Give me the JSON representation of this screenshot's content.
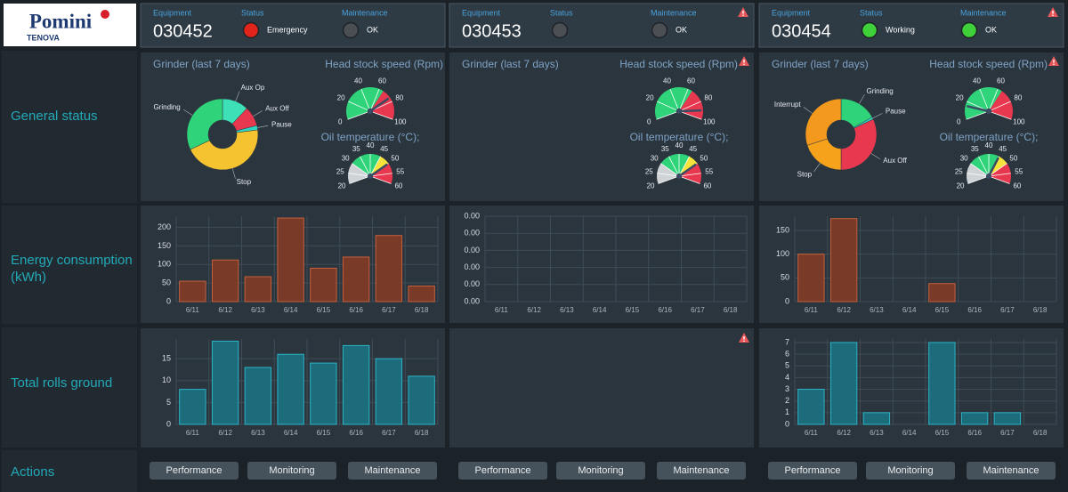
{
  "logo": {
    "brand": "Pomini",
    "sub": "TENOVA"
  },
  "row_labels": [
    "General status",
    "Energy consumption (kWh)",
    "Total rolls ground",
    "Actions"
  ],
  "columns": [
    {
      "header": {
        "equipment_label": "Equipment",
        "equipment": "030452",
        "status_label": "Status",
        "status": "Emergency",
        "status_color": "#e0241c",
        "maintenance_label": "Maintenance",
        "maintenance": "OK",
        "maintenance_color": "#4b4e52",
        "warning": false
      },
      "general": {
        "warning": false,
        "grinder_title": "Grinder (last 7 days)",
        "pie": {
          "type": "pie",
          "labels": [
            "Aux Op",
            "Aux Off",
            "Pause",
            "Stop",
            "Grinding"
          ],
          "values": [
            12,
            9,
            2,
            45,
            32
          ],
          "colors": [
            "#3ee0b8",
            "#e8384f",
            "#2fd6c4",
            "#f5c230",
            "#2fd47a"
          ]
        },
        "speed": {
          "type": "gauge",
          "title": "Head stock speed (Rpm)",
          "value": 75,
          "lim": [
            0,
            100
          ],
          "ticks": [
            0,
            20,
            40,
            60,
            80,
            100
          ],
          "bands": [
            {
              "from": 0,
              "to": 65,
              "color": "#2fd47a"
            },
            {
              "from": 65,
              "to": 100,
              "color": "#e8384f"
            }
          ]
        },
        "oil": {
          "type": "gauge",
          "title": "Oil temperature (°C);",
          "value": 50,
          "lim": [
            20,
            60
          ],
          "ticks": [
            20,
            25,
            30,
            35,
            40,
            45,
            50,
            55,
            60
          ],
          "bands": [
            {
              "from": 20,
              "to": 30,
              "color": "#cfd3d6"
            },
            {
              "from": 30,
              "to": 45,
              "color": "#2fd47a"
            },
            {
              "from": 45,
              "to": 50,
              "color": "#f5e23a"
            },
            {
              "from": 50,
              "to": 60,
              "color": "#e8384f"
            }
          ]
        }
      },
      "energy": {
        "type": "bar",
        "categories": [
          "6/11",
          "6/12",
          "6/13",
          "6/14",
          "6/15",
          "6/16",
          "6/17",
          "6/18"
        ],
        "values": [
          55,
          112,
          67,
          225,
          90,
          120,
          178,
          42
        ],
        "ylim": [
          0,
          230
        ],
        "yticks": [
          0,
          50,
          100,
          150,
          200
        ],
        "color": "#7a3a28",
        "border": "#c4603c"
      },
      "rolls": {
        "warning": false,
        "chart": {
          "type": "bar",
          "categories": [
            "6/11",
            "6/12",
            "6/13",
            "6/14",
            "6/15",
            "6/16",
            "6/17",
            "6/18"
          ],
          "values": [
            8,
            19,
            13,
            16,
            14,
            18,
            15,
            11
          ],
          "ylim": [
            0,
            19.5
          ],
          "yticks": [
            0,
            5,
            10,
            15
          ],
          "color": "#1d6c7b",
          "border": "#2bb3c6"
        }
      },
      "actions": [
        "Performance",
        "Monitoring",
        "Maintenance"
      ]
    },
    {
      "header": {
        "equipment_label": "Equipment",
        "equipment": "030453",
        "status_label": "Status",
        "status_color": "#4b4e52",
        "maintenance_label": "Maintenance",
        "maintenance": "OK",
        "maintenance_color": "#4b4e52",
        "warning": true
      },
      "general": {
        "warning": true,
        "grinder_title": "Grinder (last 7 days)",
        "speed": {
          "type": "gauge",
          "title": "Head stock speed (Rpm)",
          "value": 90,
          "lim": [
            0,
            100
          ],
          "ticks": [
            0,
            20,
            40,
            60,
            80,
            100
          ],
          "bands": [
            {
              "from": 0,
              "to": 65,
              "color": "#2fd47a"
            },
            {
              "from": 65,
              "to": 100,
              "color": "#e8384f"
            }
          ]
        },
        "oil": {
          "type": "gauge",
          "title": "Oil temperature (°C);",
          "value": 50,
          "lim": [
            20,
            60
          ],
          "ticks": [
            20,
            25,
            30,
            35,
            40,
            45,
            50,
            55,
            60
          ],
          "bands": [
            {
              "from": 20,
              "to": 30,
              "color": "#cfd3d6"
            },
            {
              "from": 30,
              "to": 45,
              "color": "#2fd47a"
            },
            {
              "from": 45,
              "to": 50,
              "color": "#f5e23a"
            },
            {
              "from": 50,
              "to": 60,
              "color": "#e8384f"
            }
          ]
        }
      },
      "energy": {
        "type": "bar",
        "categories": [
          "6/11",
          "6/12",
          "6/13",
          "6/14",
          "6/15",
          "6/16",
          "6/17",
          "6/18"
        ],
        "ylim": [
          0,
          0.005
        ],
        "yticks": [
          {
            "value": 0,
            "label": "0.00"
          },
          {
            "value": 0.001,
            "label": "0.00"
          },
          {
            "value": 0.002,
            "label": "0.00"
          },
          {
            "value": 0.003,
            "label": "0.00"
          },
          {
            "value": 0.004,
            "label": "0.00"
          },
          {
            "value": 0.005,
            "label": "0.00"
          }
        ],
        "color": "#7a3a28",
        "border": "#c4603c"
      },
      "rolls": {
        "warning": true
      },
      "actions": [
        "Performance",
        "Monitoring",
        "Maintenance"
      ]
    },
    {
      "header": {
        "equipment_label": "Equipment",
        "equipment": "030454",
        "status_label": "Status",
        "status": "Working",
        "status_color": "#3ed13a",
        "maintenance_label": "Maintenance",
        "maintenance": "OK",
        "maintenance_color": "#3ed13a",
        "warning": true
      },
      "general": {
        "warning": true,
        "grinder_title": "Grinder (last 7 days)",
        "pie": {
          "type": "pie",
          "labels": [
            "Grinding",
            "Pause",
            "Aux Off",
            "Stop",
            "Interrupt"
          ],
          "values": [
            17,
            1,
            32,
            20,
            30
          ],
          "colors": [
            "#2fd47a",
            "#2fd6c4",
            "#e8384f",
            "#f7a21b",
            "#f39a1e"
          ]
        },
        "speed": {
          "type": "gauge",
          "title": "Head stock speed (Rpm)",
          "value": 15,
          "lim": [
            0,
            100
          ],
          "ticks": [
            0,
            20,
            40,
            60,
            80,
            100
          ],
          "bands": [
            {
              "from": 0,
              "to": 65,
              "color": "#2fd47a"
            },
            {
              "from": 65,
              "to": 100,
              "color": "#e8384f"
            }
          ]
        },
        "oil": {
          "type": "gauge",
          "title": "Oil temperature (°C);",
          "value": 45,
          "lim": [
            20,
            60
          ],
          "ticks": [
            20,
            25,
            30,
            35,
            40,
            45,
            50,
            55,
            60
          ],
          "bands": [
            {
              "from": 20,
              "to": 30,
              "color": "#cfd3d6"
            },
            {
              "from": 30,
              "to": 45,
              "color": "#2fd47a"
            },
            {
              "from": 45,
              "to": 50,
              "color": "#f5e23a"
            },
            {
              "from": 50,
              "to": 60,
              "color": "#e8384f"
            }
          ]
        }
      },
      "energy": {
        "type": "bar",
        "categories": [
          "6/11",
          "6/12",
          "6/13",
          "6/14",
          "6/15",
          "6/16",
          "6/17",
          "6/18"
        ],
        "values": [
          100,
          175,
          0,
          0,
          38,
          0,
          0,
          0
        ],
        "ylim": [
          0,
          180
        ],
        "yticks": [
          0,
          50,
          100,
          150
        ],
        "color": "#7a3a28",
        "border": "#c4603c"
      },
      "rolls": {
        "warning": false,
        "chart": {
          "type": "bar",
          "categories": [
            "6/11",
            "6/12",
            "6/13",
            "6/14",
            "6/15",
            "6/16",
            "6/17",
            "6/18"
          ],
          "values": [
            3,
            7,
            1,
            0,
            7,
            1,
            1,
            0
          ],
          "ylim": [
            0,
            7.3
          ],
          "yticks": [
            0,
            1,
            2,
            3,
            4,
            5,
            6,
            7
          ],
          "color": "#1d6c7b",
          "border": "#2bb3c6"
        }
      },
      "actions": [
        "Performance",
        "Monitoring",
        "Maintenance"
      ]
    }
  ]
}
